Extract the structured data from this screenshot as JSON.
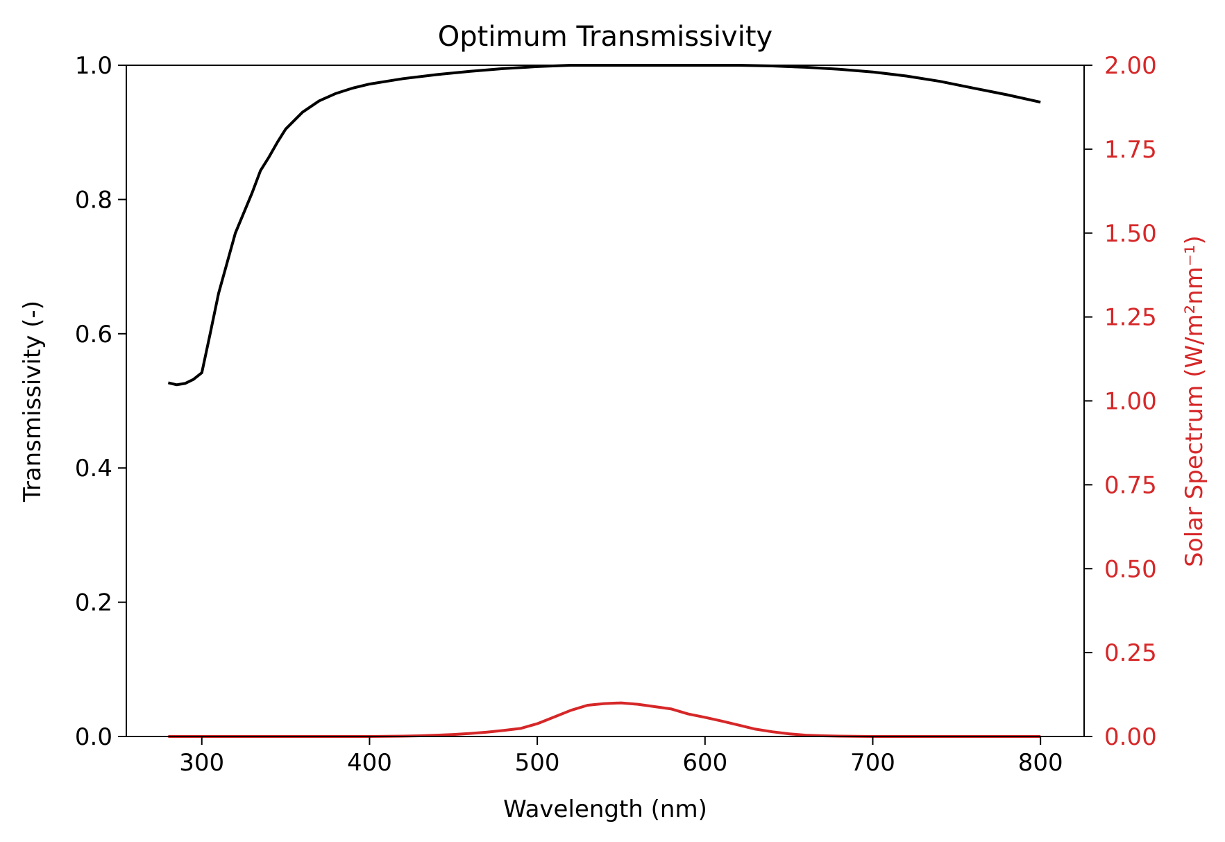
{
  "chart_data": {
    "type": "line",
    "title": "Optimum Transmissivity",
    "xlabel": "Wavelength (nm)",
    "ylabel": "Transmissivity (-)",
    "ylabel_right": "Solar Spectrum (W/m²nm⁻¹)",
    "xlim": [
      255,
      826
    ],
    "ylim": [
      0.0,
      1.0
    ],
    "ylim_right": [
      0.0,
      2.0
    ],
    "x_ticks": [
      "300",
      "400",
      "500",
      "600",
      "700",
      "800"
    ],
    "y_ticks": [
      "0.0",
      "0.2",
      "0.4",
      "0.6",
      "0.8",
      "1.0"
    ],
    "y_ticks_right": [
      "0.00",
      "0.25",
      "0.50",
      "0.75",
      "1.00",
      "1.25",
      "1.50",
      "1.75",
      "2.00"
    ],
    "grid": false,
    "colors": {
      "transmissivity": "#000000",
      "solar_spectrum": "#d62728",
      "left_axis": "#000000",
      "right_axis": "#d62728"
    },
    "series": [
      {
        "axis": "left",
        "x": [
          280,
          285,
          290,
          295,
          300,
          305,
          310,
          320,
          330,
          335,
          340,
          345,
          350,
          360,
          370,
          380,
          390,
          400,
          410,
          420,
          440,
          460,
          480,
          500,
          520,
          540,
          560,
          580,
          600,
          620,
          640,
          660,
          680,
          700,
          720,
          740,
          760,
          780,
          800
        ],
        "values": [
          0.527,
          0.524,
          0.526,
          0.532,
          0.542,
          0.6,
          0.66,
          0.75,
          0.81,
          0.843,
          0.863,
          0.885,
          0.905,
          0.93,
          0.947,
          0.958,
          0.966,
          0.972,
          0.976,
          0.98,
          0.986,
          0.991,
          0.995,
          0.998,
          1.0,
          1.0,
          1.0,
          1.0,
          1.0,
          1.0,
          0.999,
          0.997,
          0.994,
          0.99,
          0.984,
          0.976,
          0.966,
          0.956,
          0.945
        ]
      },
      {
        "axis": "right",
        "x": [
          280,
          300,
          350,
          400,
          420,
          430,
          440,
          450,
          460,
          470,
          480,
          490,
          500,
          510,
          520,
          530,
          540,
          550,
          560,
          570,
          580,
          590,
          600,
          610,
          620,
          630,
          640,
          650,
          660,
          670,
          680,
          700,
          750,
          800
        ],
        "values": [
          0.0,
          0.0,
          0.0,
          0.0,
          0.001,
          0.002,
          0.004,
          0.006,
          0.009,
          0.013,
          0.018,
          0.024,
          0.038,
          0.058,
          0.078,
          0.093,
          0.098,
          0.1,
          0.096,
          0.089,
          0.082,
          0.067,
          0.057,
          0.046,
          0.034,
          0.022,
          0.014,
          0.008,
          0.004,
          0.002,
          0.001,
          0.0,
          0.0,
          0.0
        ]
      }
    ]
  }
}
